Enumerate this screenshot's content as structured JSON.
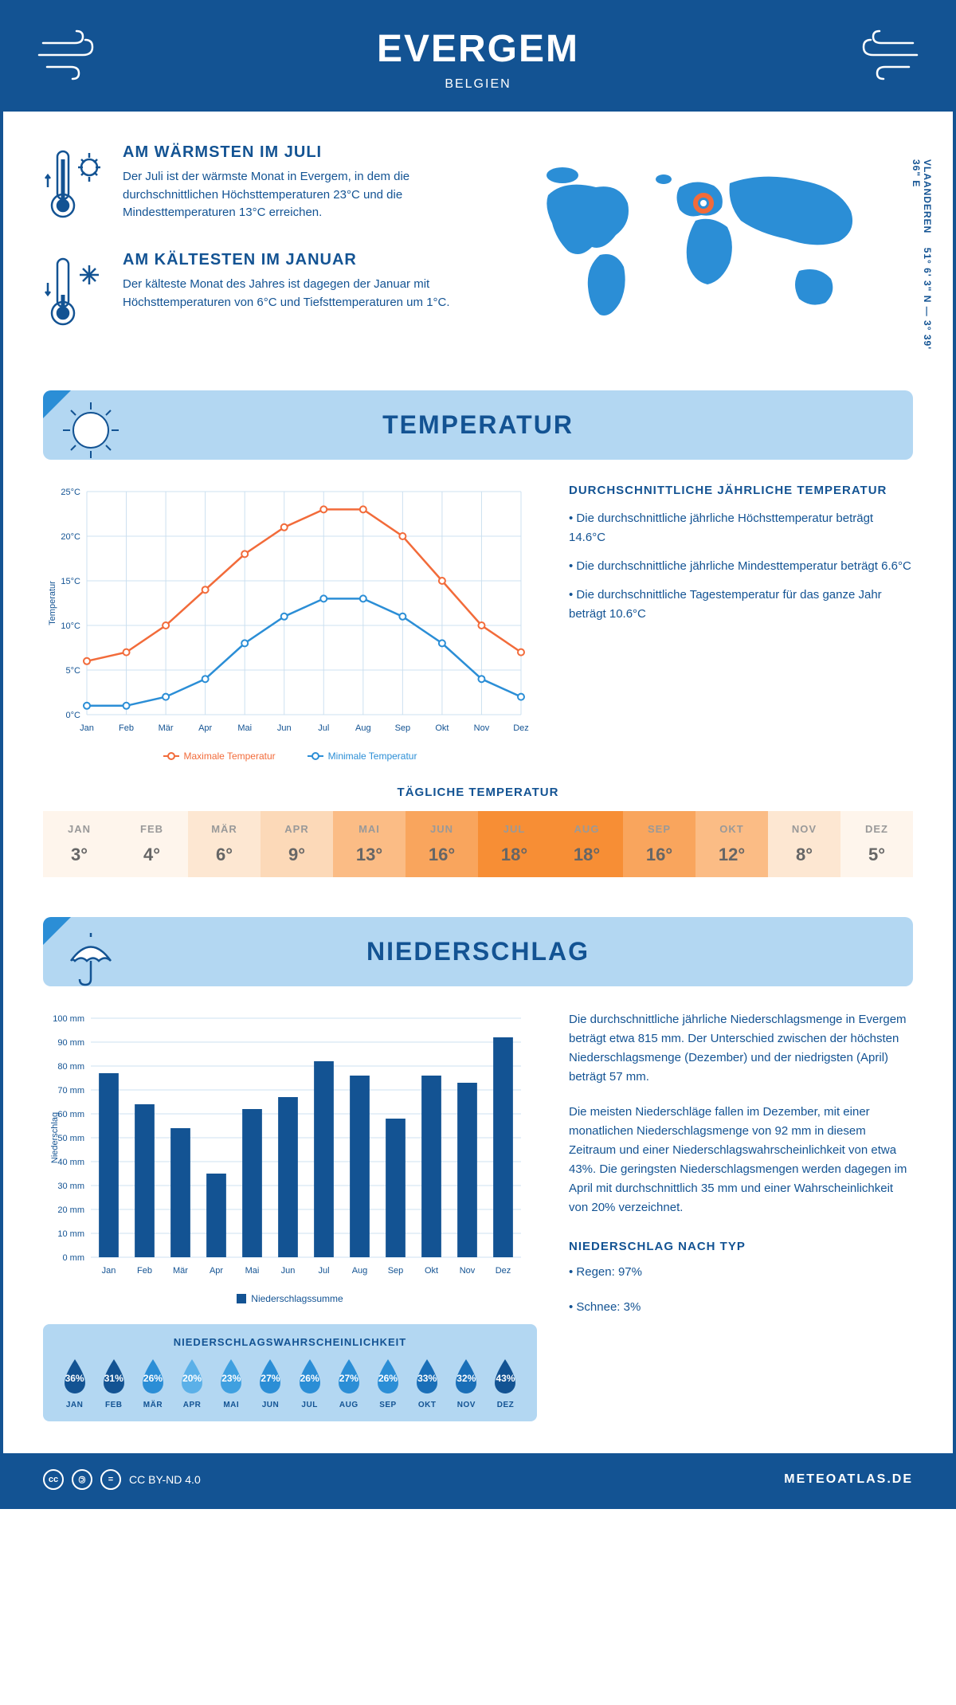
{
  "header": {
    "city": "EVERGEM",
    "country": "BELGIEN"
  },
  "intro": {
    "warm": {
      "title": "AM WÄRMSTEN IM JULI",
      "text": "Der Juli ist der wärmste Monat in Evergem, in dem die durchschnittlichen Höchsttemperaturen 23°C und die Mindesttemperaturen 13°C erreichen."
    },
    "cold": {
      "title": "AM KÄLTESTEN IM JANUAR",
      "text": "Der kälteste Monat des Jahres ist dagegen der Januar mit Höchsttemperaturen von 6°C und Tiefsttemperaturen um 1°C."
    },
    "coords": "51° 6' 3\" N — 3° 39' 36\" E",
    "region": "VLAANDEREN"
  },
  "temp_section": {
    "title": "TEMPERATUR",
    "chart": {
      "months": [
        "Jan",
        "Feb",
        "Mär",
        "Apr",
        "Mai",
        "Jun",
        "Jul",
        "Aug",
        "Sep",
        "Okt",
        "Nov",
        "Dez"
      ],
      "max": [
        6,
        7,
        10,
        14,
        18,
        21,
        23,
        23,
        20,
        15,
        10,
        7
      ],
      "min": [
        1,
        1,
        2,
        4,
        8,
        11,
        13,
        13,
        11,
        8,
        4,
        2
      ],
      "max_color": "#f26b3a",
      "min_color": "#2b8ed6",
      "ylabel": "Temperatur",
      "yticks": [
        0,
        5,
        10,
        15,
        20,
        25
      ],
      "ytick_labels": [
        "0°C",
        "5°C",
        "10°C",
        "15°C",
        "20°C",
        "25°C"
      ],
      "grid_color": "#cce0f0",
      "legend_max": "Maximale Temperatur",
      "legend_min": "Minimale Temperatur"
    },
    "text": {
      "heading": "DURCHSCHNITTLICHE JÄHRLICHE TEMPERATUR",
      "b1": "• Die durchschnittliche jährliche Höchsttemperatur beträgt 14.6°C",
      "b2": "• Die durchschnittliche jährliche Mindesttemperatur beträgt 6.6°C",
      "b3": "• Die durchschnittliche Tagestemperatur für das ganze Jahr beträgt 10.6°C"
    },
    "daily": {
      "title": "TÄGLICHE TEMPERATUR",
      "months": [
        "JAN",
        "FEB",
        "MÄR",
        "APR",
        "MAI",
        "JUN",
        "JUL",
        "AUG",
        "SEP",
        "OKT",
        "NOV",
        "DEZ"
      ],
      "values": [
        "3°",
        "4°",
        "6°",
        "9°",
        "13°",
        "16°",
        "18°",
        "18°",
        "16°",
        "12°",
        "8°",
        "5°"
      ],
      "colors": [
        "#fef5ec",
        "#fef5ec",
        "#fde7d2",
        "#fcd9b8",
        "#fbbc85",
        "#f9a55d",
        "#f78e35",
        "#f78e35",
        "#f9a55d",
        "#fbbc85",
        "#fde7d2",
        "#fef5ec"
      ]
    }
  },
  "precip_section": {
    "title": "NIEDERSCHLAG",
    "chart": {
      "months": [
        "Jan",
        "Feb",
        "Mär",
        "Apr",
        "Mai",
        "Jun",
        "Jul",
        "Aug",
        "Sep",
        "Okt",
        "Nov",
        "Dez"
      ],
      "values": [
        77,
        64,
        54,
        35,
        62,
        67,
        82,
        76,
        58,
        76,
        73,
        92
      ],
      "bar_color": "#135393",
      "ylabel": "Niederschlag",
      "yticks": [
        0,
        10,
        20,
        30,
        40,
        50,
        60,
        70,
        80,
        90,
        100
      ],
      "legend": "Niederschlagssumme"
    },
    "text": {
      "p1": "Die durchschnittliche jährliche Niederschlagsmenge in Evergem beträgt etwa 815 mm. Der Unterschied zwischen der höchsten Niederschlagsmenge (Dezember) und der niedrigsten (April) beträgt 57 mm.",
      "p2": "Die meisten Niederschläge fallen im Dezember, mit einer monatlichen Niederschlagsmenge von 92 mm in diesem Zeitraum und einer Niederschlagswahrscheinlichkeit von etwa 43%. Die geringsten Niederschlagsmengen werden dagegen im April mit durchschnittlich 35 mm und einer Wahrscheinlichkeit von 20% verzeichnet.",
      "type_heading": "NIEDERSCHLAG NACH TYP",
      "rain": "• Regen: 97%",
      "snow": "• Schnee: 3%"
    },
    "prob": {
      "title": "NIEDERSCHLAGSWAHRSCHEINLICHKEIT",
      "months": [
        "JAN",
        "FEB",
        "MÄR",
        "APR",
        "MAI",
        "JUN",
        "JUL",
        "AUG",
        "SEP",
        "OKT",
        "NOV",
        "DEZ"
      ],
      "values": [
        "36%",
        "31%",
        "26%",
        "20%",
        "23%",
        "27%",
        "26%",
        "27%",
        "26%",
        "33%",
        "32%",
        "43%"
      ],
      "colors": [
        "#135393",
        "#135393",
        "#2b8ed6",
        "#5bb0e8",
        "#3fa0e0",
        "#2b8ed6",
        "#2b8ed6",
        "#2b8ed6",
        "#2b8ed6",
        "#1a6fb8",
        "#1a6fb8",
        "#135393"
      ]
    }
  },
  "footer": {
    "license": "CC BY-ND 4.0",
    "brand": "METEOATLAS.DE"
  }
}
